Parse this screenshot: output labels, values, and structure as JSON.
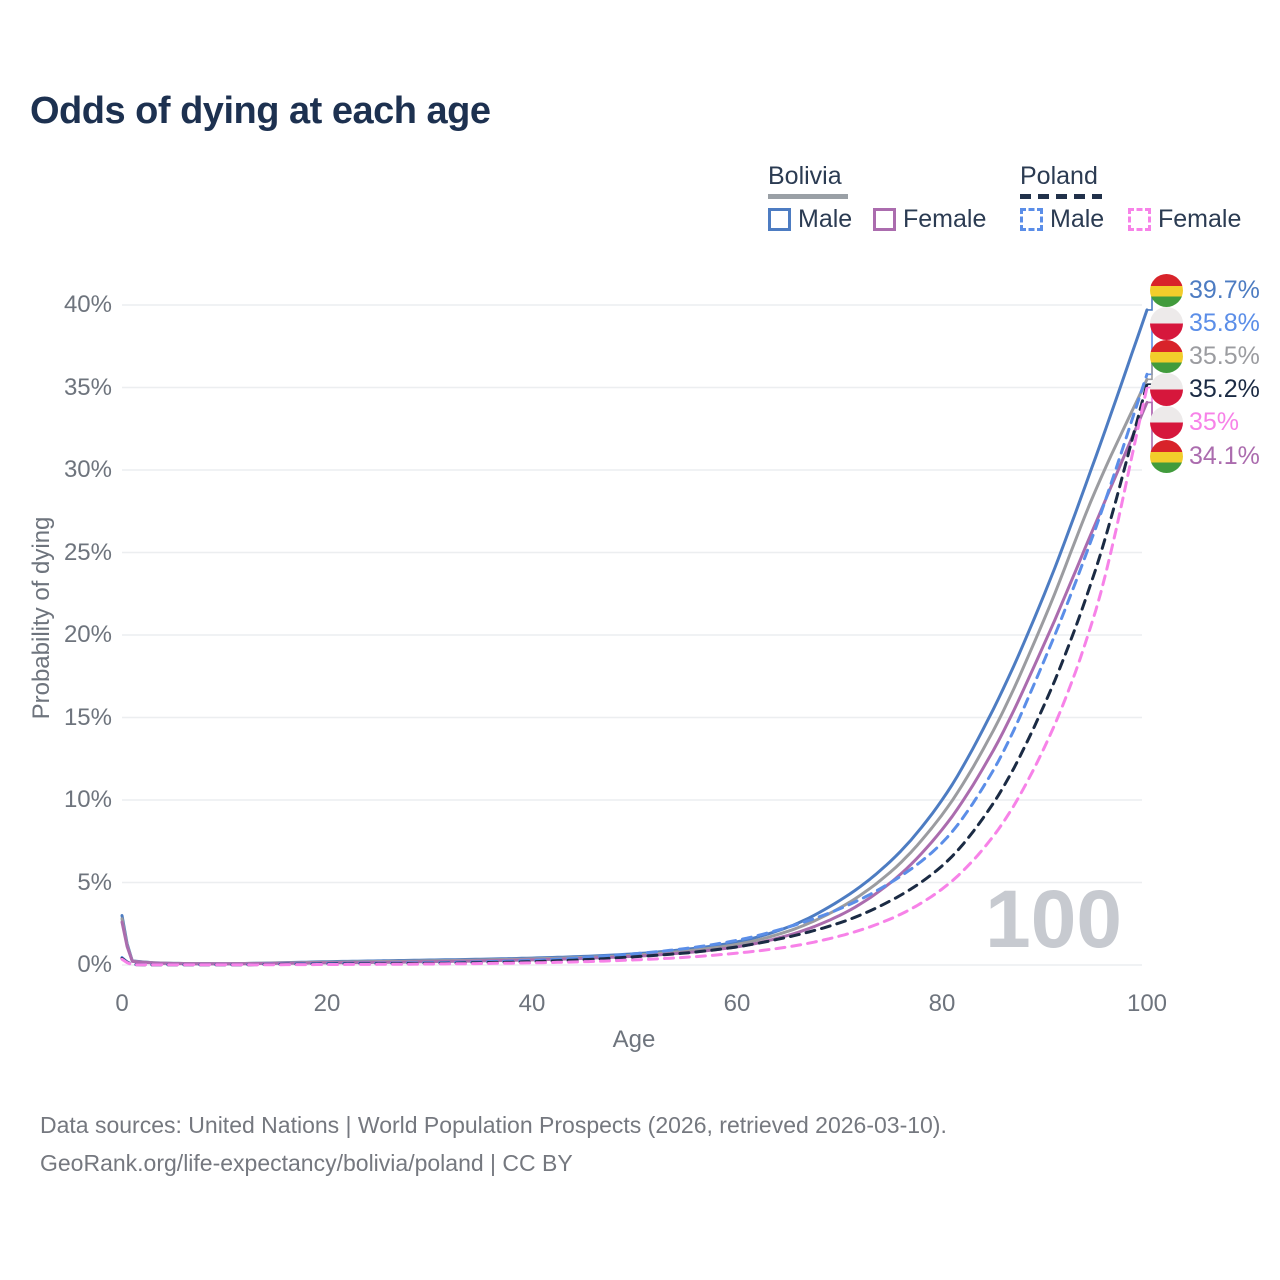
{
  "title": "Odds of dying at each age",
  "legend": {
    "groups": [
      {
        "label": "Bolivia",
        "line_style": "solid",
        "underline_color": "#9aa0a6",
        "items": [
          {
            "label": "Male",
            "color": "#4d7cc2",
            "dashed": false
          },
          {
            "label": "Female",
            "color": "#ab6cae",
            "dashed": false
          }
        ]
      },
      {
        "label": "Poland",
        "line_style": "dashed",
        "underline_color": "#21314a",
        "items": [
          {
            "label": "Male",
            "color": "#5b8ee8",
            "dashed": true
          },
          {
            "label": "Female",
            "color": "#f782e8",
            "dashed": true
          }
        ]
      }
    ]
  },
  "chart_data": {
    "type": "line",
    "title": "Odds of dying at each age",
    "xlabel": "Age",
    "ylabel": "Probability of dying",
    "xlim": [
      0,
      100
    ],
    "ylim": [
      0,
      41
    ],
    "grid": "horizontal",
    "legend_position": "top-right",
    "watermark": "100",
    "xticks": {
      "values": [
        0,
        20,
        40,
        60,
        80,
        100
      ],
      "labels": [
        "0",
        "20",
        "40",
        "60",
        "80",
        "100"
      ]
    },
    "yticks": {
      "values": [
        0,
        5,
        10,
        15,
        20,
        25,
        30,
        35,
        40
      ],
      "labels": [
        "0%",
        "5%",
        "10%",
        "15%",
        "20%",
        "25%",
        "30%",
        "35%",
        "40%"
      ]
    },
    "x": [
      0,
      1,
      5,
      10,
      15,
      20,
      25,
      30,
      35,
      40,
      45,
      50,
      55,
      60,
      65,
      70,
      75,
      80,
      85,
      90,
      95,
      100
    ],
    "series": [
      {
        "name": "Bolivia Male",
        "color": "#4d7cc2",
        "dashed": false,
        "flag": "bolivia",
        "end_label": "39.7%",
        "values": [
          3.0,
          0.25,
          0.1,
          0.08,
          0.13,
          0.2,
          0.25,
          0.3,
          0.35,
          0.42,
          0.52,
          0.68,
          0.95,
          1.4,
          2.3,
          3.9,
          6.3,
          10.0,
          15.5,
          22.5,
          30.8,
          39.7
        ]
      },
      {
        "name": "Bolivia Total",
        "color": "#9b9ca0",
        "dashed": false,
        "flag": "bolivia",
        "end_label": "35.5%",
        "values": [
          2.8,
          0.24,
          0.1,
          0.08,
          0.12,
          0.17,
          0.21,
          0.25,
          0.3,
          0.37,
          0.46,
          0.6,
          0.85,
          1.25,
          2.05,
          3.45,
          5.65,
          9.1,
          14.2,
          21.0,
          28.8,
          35.5
        ]
      },
      {
        "name": "Bolivia Female",
        "color": "#ab6cae",
        "dashed": false,
        "flag": "bolivia",
        "end_label": "34.1%",
        "values": [
          2.6,
          0.22,
          0.09,
          0.07,
          0.1,
          0.13,
          0.16,
          0.2,
          0.25,
          0.31,
          0.4,
          0.53,
          0.75,
          1.1,
          1.8,
          3.0,
          5.0,
          8.2,
          13.0,
          19.5,
          26.8,
          34.1
        ]
      },
      {
        "name": "Poland Male",
        "color": "#5b8ee8",
        "dashed": true,
        "flag": "poland",
        "end_label": "35.8%",
        "values": [
          0.45,
          0.03,
          0.01,
          0.01,
          0.05,
          0.09,
          0.11,
          0.14,
          0.19,
          0.28,
          0.44,
          0.68,
          1.0,
          1.5,
          2.3,
          3.4,
          5.0,
          7.4,
          11.8,
          18.5,
          26.5,
          35.8
        ]
      },
      {
        "name": "Poland Total",
        "color": "#1b2b44",
        "dashed": true,
        "flag": "poland",
        "end_label": "35.2%",
        "values": [
          0.4,
          0.025,
          0.01,
          0.01,
          0.035,
          0.06,
          0.08,
          0.1,
          0.14,
          0.2,
          0.32,
          0.5,
          0.73,
          1.1,
          1.7,
          2.55,
          3.9,
          6.0,
          9.8,
          15.8,
          24.0,
          35.2
        ]
      },
      {
        "name": "Poland Female",
        "color": "#f782e8",
        "dashed": true,
        "flag": "poland",
        "end_label": "35%",
        "values": [
          0.35,
          0.02,
          0.01,
          0.01,
          0.02,
          0.03,
          0.04,
          0.06,
          0.09,
          0.13,
          0.2,
          0.31,
          0.47,
          0.72,
          1.1,
          1.75,
          2.8,
          4.6,
          7.8,
          13.2,
          21.5,
          35.0
        ]
      }
    ]
  },
  "watermark": "100",
  "footer": {
    "line1": "Data sources: United Nations | World Population Prospects (2026, retrieved 2026-03-10).",
    "line2": "GeoRank.org/life-expectancy/bolivia/poland | CC BY"
  }
}
